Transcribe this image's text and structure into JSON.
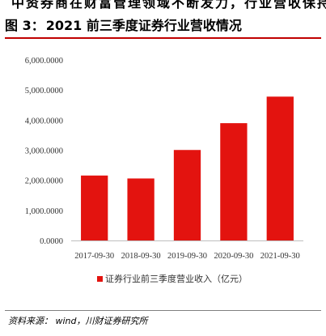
{
  "header": {
    "fig_label": "图 3：",
    "fig_title": "2021 前三季度证券行业营收情况",
    "top_fragment": "中资券商在财富管理领域不断发力，行业营收保持增长"
  },
  "source": "资料来源： wind，川财证券研究所",
  "colors": {
    "bar": "#e3130f",
    "title_rule": "#c00000",
    "axis": "#bfbfbf"
  },
  "chart_data": {
    "type": "bar",
    "title": "",
    "categories": [
      "2017-09-30",
      "2018-09-30",
      "2019-09-30",
      "2020-09-30",
      "2021-09-30"
    ],
    "series": [
      {
        "name": "证券行业前三季度营业收入（亿元）",
        "values": [
          2158,
          2060,
          3007,
          3898,
          4780
        ]
      }
    ],
    "yticks": [
      "0.0000",
      "1,000.0000",
      "2,000.0000",
      "3,000.0000",
      "4,000.0000",
      "5,000.0000",
      "6,000.0000"
    ],
    "ylim": [
      0,
      6000
    ],
    "grid": false,
    "legend": "bottom"
  }
}
